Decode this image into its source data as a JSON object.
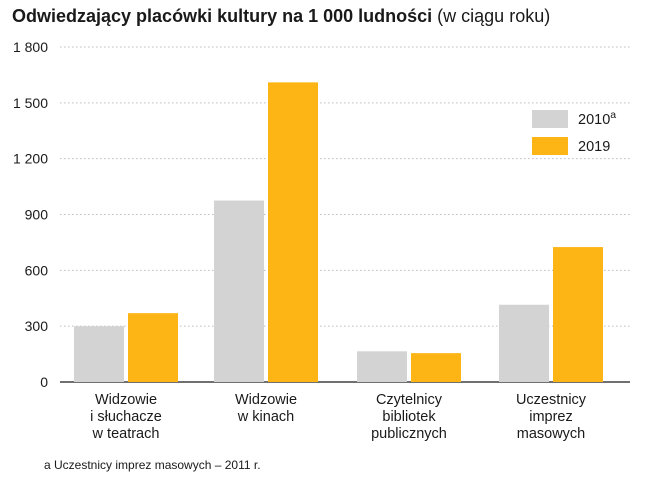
{
  "chart_data": {
    "type": "bar",
    "title": "Odwiedzający placówki kultury na 1 000 ludności",
    "subtitle": "(w ciągu roku)",
    "categories": [
      [
        "Widzowie",
        "i słuchacze",
        "w teatrach"
      ],
      [
        "Widzowie",
        "w kinach"
      ],
      [
        "Czytelnicy",
        "bibliotek",
        "publicznych"
      ],
      [
        "Uczestnicy",
        "imprez",
        "masowych"
      ]
    ],
    "series": [
      {
        "name": "2010",
        "superscript": "a",
        "color": "#d3d3d3",
        "values": [
          300,
          975,
          165,
          415
        ]
      },
      {
        "name": "2019",
        "superscript": "",
        "color": "#fdb515",
        "values": [
          370,
          1610,
          155,
          725
        ]
      }
    ],
    "ylim": [
      0,
      1800
    ],
    "yticks": [
      0,
      300,
      600,
      900,
      1200,
      1500,
      1800
    ],
    "ytick_labels": [
      "0",
      "300",
      "600",
      "900",
      "1 200",
      "1 500",
      "1 800"
    ],
    "grid": "dotted horizontal",
    "legend_position": "top-right",
    "footnote": "a  Uczestnicy imprez masowych – 2011 r."
  }
}
